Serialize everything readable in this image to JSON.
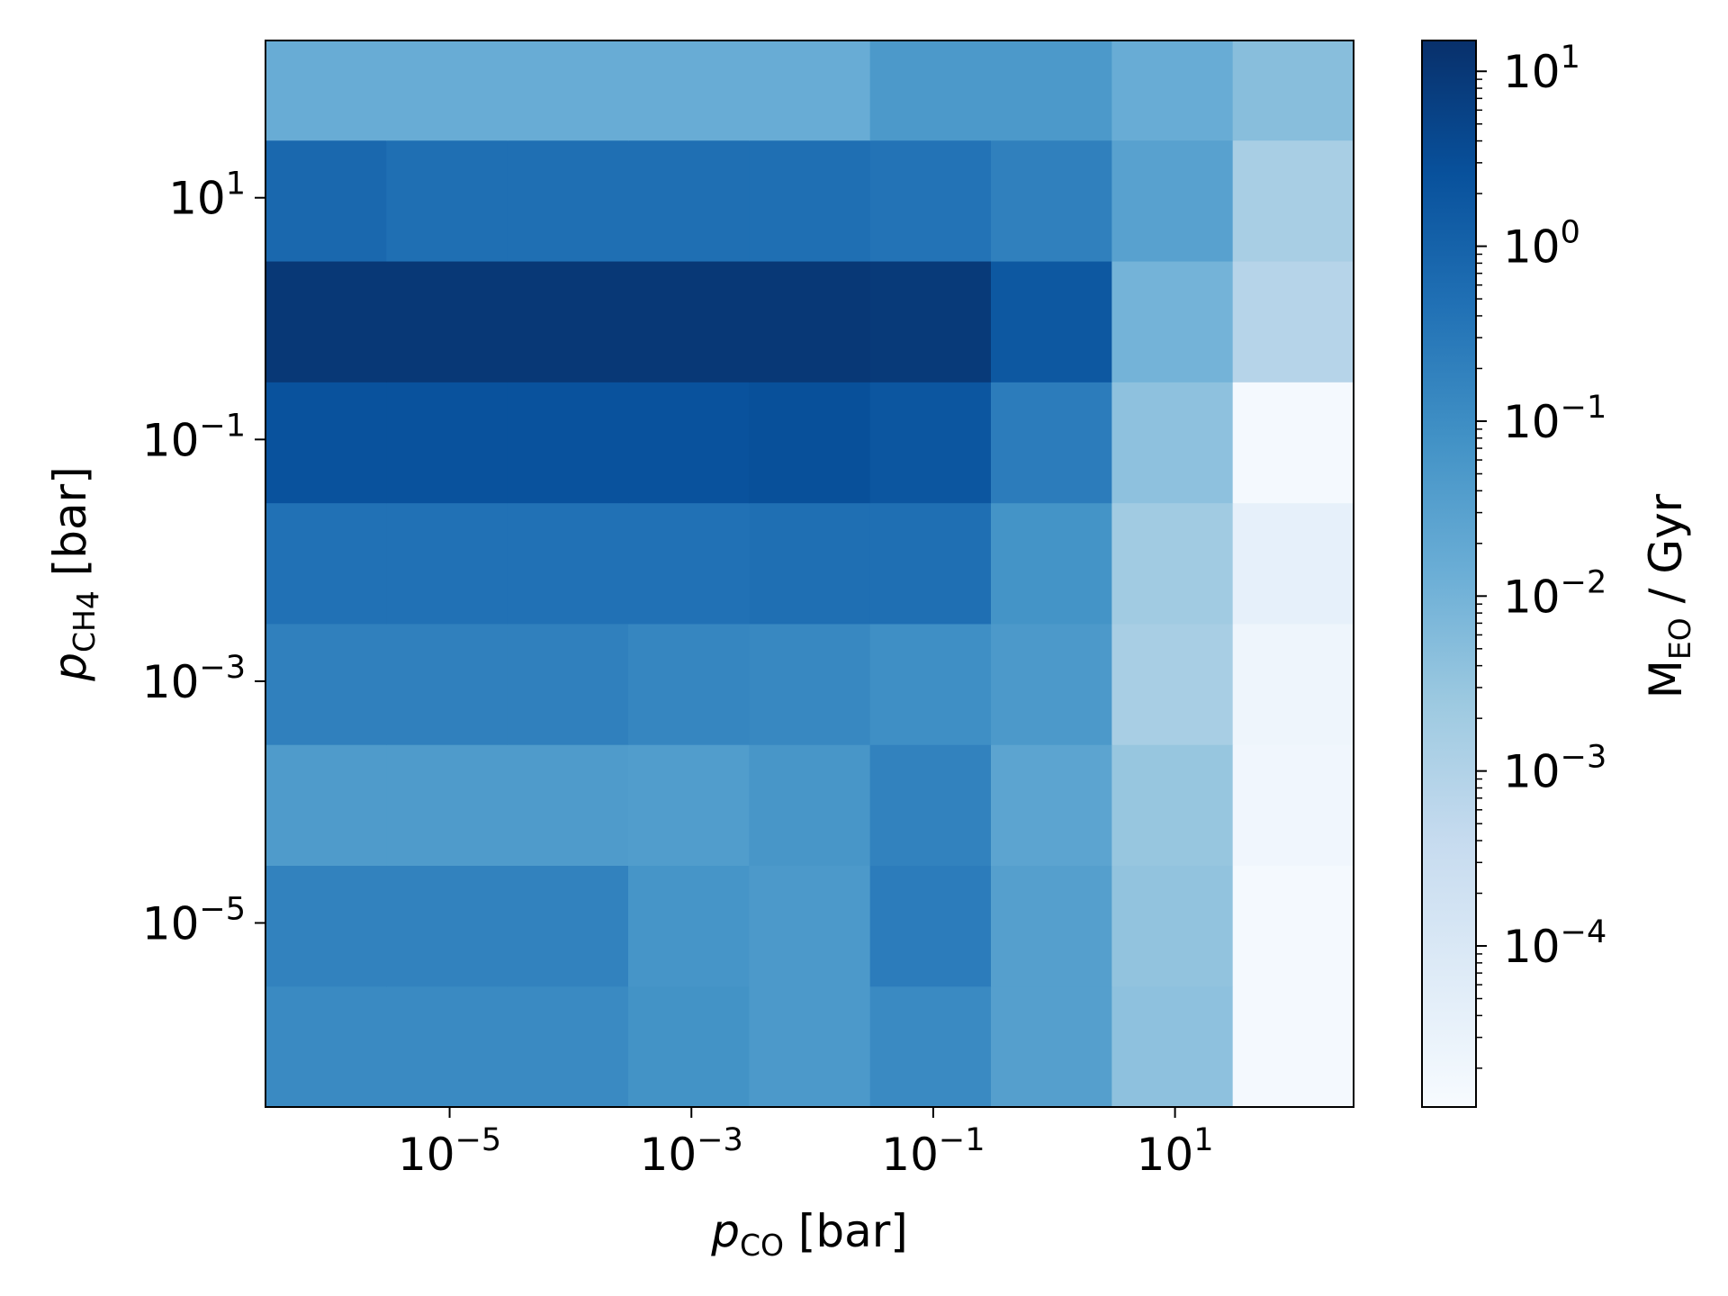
{
  "chart_data": {
    "type": "heatmap",
    "title": "",
    "x_axis": {
      "label_prefix": "p",
      "label_sub": "CO",
      "label_unit": " [bar]",
      "scale": "log",
      "range": [
        3e-07,
        300
      ],
      "ticks": [
        {
          "base": "10",
          "exp": "−5",
          "value": 1e-05
        },
        {
          "base": "10",
          "exp": "−3",
          "value": 0.001
        },
        {
          "base": "10",
          "exp": "−1",
          "value": 0.1
        },
        {
          "base": "10",
          "exp": "1",
          "value": 10
        }
      ]
    },
    "y_axis": {
      "label_prefix": "p",
      "label_sub": "CH",
      "label_sub2": "4",
      "label_unit": " [bar]",
      "scale": "log",
      "range": [
        3e-07,
        200
      ],
      "ticks": [
        {
          "base": "10",
          "exp": "−5",
          "value": 1e-05
        },
        {
          "base": "10",
          "exp": "−3",
          "value": 0.001
        },
        {
          "base": "10",
          "exp": "−1",
          "value": 0.1
        },
        {
          "base": "10",
          "exp": "1",
          "value": 10
        }
      ]
    },
    "x_edges": [
      3e-07,
      3e-06,
      3e-05,
      0.0003,
      0.003,
      0.03,
      0.3,
      3,
      30,
      300
    ],
    "y_edges": [
      3e-07,
      3e-06,
      3e-05,
      0.0003,
      0.003,
      0.03,
      0.3,
      3,
      30,
      200
    ],
    "z_rows_bottom_to_top": [
      [
        0.12,
        0.12,
        0.12,
        0.075,
        0.05,
        0.12,
        0.035,
        0.004,
        1.5e-05
      ],
      [
        0.18,
        0.18,
        0.18,
        0.065,
        0.05,
        0.25,
        0.035,
        0.0035,
        1.5e-05
      ],
      [
        0.045,
        0.045,
        0.045,
        0.04,
        0.06,
        0.18,
        0.025,
        0.003,
        2e-05
      ],
      [
        0.2,
        0.2,
        0.2,
        0.15,
        0.13,
        0.09,
        0.05,
        0.0015,
        2.2e-05
      ],
      [
        0.45,
        0.45,
        0.45,
        0.45,
        0.5,
        0.5,
        0.07,
        0.002,
        4e-05
      ],
      [
        2.5,
        2.5,
        2.5,
        2.5,
        2.8,
        2.0,
        0.25,
        0.004,
        1.5e-05
      ],
      [
        10,
        10,
        10,
        10,
        10,
        9,
        1.8,
        0.01,
        0.0008
      ],
      [
        0.75,
        0.5,
        0.5,
        0.5,
        0.5,
        0.4,
        0.2,
        0.03,
        0.0015
      ],
      [
        0.015,
        0.015,
        0.015,
        0.015,
        0.015,
        0.05,
        0.05,
        0.015,
        0.005
      ]
    ],
    "colorbar": {
      "label_base": "M",
      "label_sub": "EO",
      "label_unit": " / Gyr",
      "scale": "log",
      "range": [
        1.2e-05,
        15
      ],
      "colormap": "Blues",
      "ticks": [
        {
          "base": "10",
          "exp": "1",
          "value": 10
        },
        {
          "base": "10",
          "exp": "0",
          "value": 1
        },
        {
          "base": "10",
          "exp": "−1",
          "value": 0.1
        },
        {
          "base": "10",
          "exp": "−2",
          "value": 0.01
        },
        {
          "base": "10",
          "exp": "−3",
          "value": 0.001
        },
        {
          "base": "10",
          "exp": "−4",
          "value": 0.0001
        }
      ]
    }
  }
}
